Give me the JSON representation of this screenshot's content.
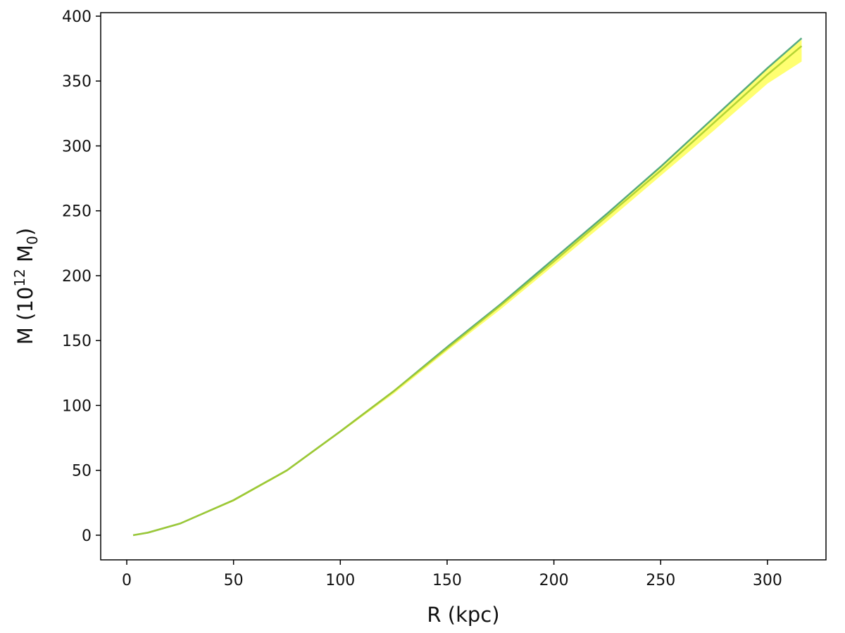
{
  "chart_data": {
    "type": "line",
    "xlabel": "R (kpc)",
    "ylabel_parts": [
      "M (10",
      "12",
      " M",
      "0",
      ")"
    ],
    "x": [
      3,
      10,
      25,
      50,
      75,
      100,
      125,
      150,
      175,
      200,
      225,
      250,
      275,
      300,
      316
    ],
    "band": {
      "color": "#ffff4d",
      "lower": [
        0,
        2,
        8.5,
        26,
        49,
        79,
        109,
        142,
        174,
        208,
        242,
        277,
        312,
        348,
        365
      ],
      "upper": [
        0,
        2,
        9,
        27,
        50,
        80,
        111,
        145,
        178,
        213,
        248,
        284,
        322,
        360,
        382
      ]
    },
    "series": [
      {
        "color": "#3a9c6e",
        "values": [
          0,
          2,
          9,
          27,
          50,
          80,
          111,
          145,
          178,
          213,
          248,
          284,
          322,
          360,
          383
        ]
      },
      {
        "color": "#a8cc2a",
        "values": [
          0,
          2,
          9,
          27,
          50,
          80,
          111,
          144,
          177,
          211,
          246,
          281,
          318,
          355,
          377
        ]
      }
    ],
    "xlim": [
      -12.2,
      327.4
    ],
    "ylim": [
      -19,
      402.7
    ],
    "xticks": [
      0,
      50,
      100,
      150,
      200,
      250,
      300
    ],
    "yticks": [
      0,
      50,
      100,
      150,
      200,
      250,
      300,
      350,
      400
    ]
  }
}
